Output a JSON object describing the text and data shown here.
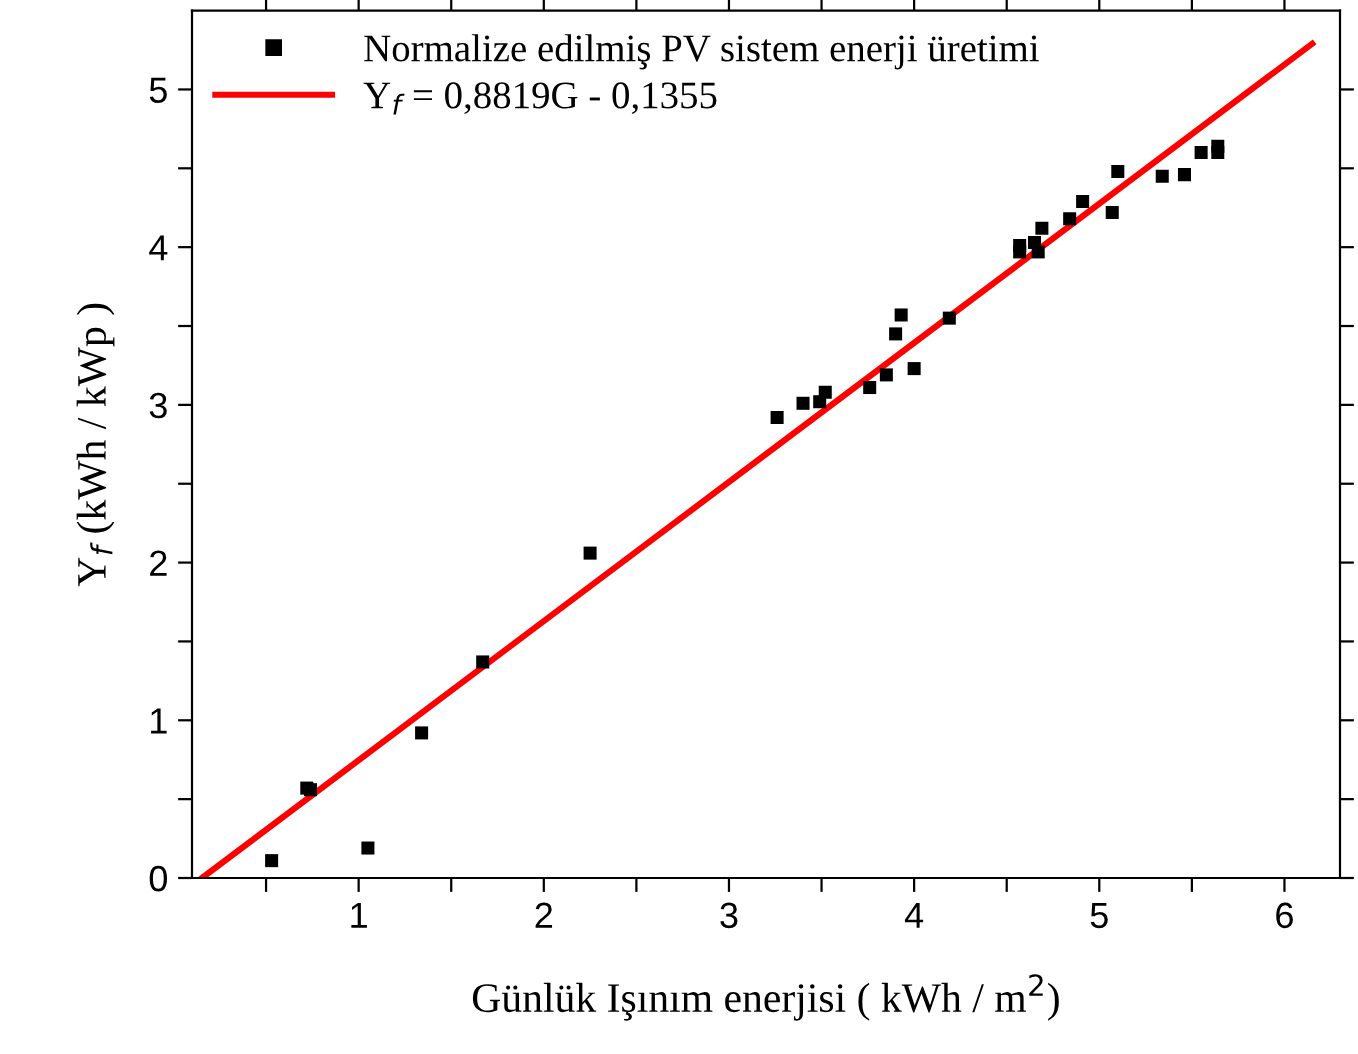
{
  "chart_data": {
    "type": "scatter",
    "xlabel": "Günlük Işınım enerjisi ( kWh / m$^{2}$)",
    "ylabel": "Y$_{f}$ (kWh / kWp )",
    "xlim": [
      0.1,
      6.3
    ],
    "ylim": [
      0,
      5.5
    ],
    "xticks": [
      {
        "value": 0.5,
        "label": null
      },
      1,
      {
        "value": 1.5,
        "label": null
      },
      2,
      {
        "value": 2.5,
        "label": null
      },
      3,
      {
        "value": 3.5,
        "label": null
      },
      4,
      {
        "value": 4.5,
        "label": null
      },
      5,
      {
        "value": 5.5,
        "label": null
      },
      6
    ],
    "yticks": [
      0,
      {
        "value": 0.5,
        "label": null
      },
      1,
      {
        "value": 1.5,
        "label": null
      },
      2,
      {
        "value": 2.5,
        "label": null
      },
      3,
      {
        "value": 3.5,
        "label": null
      },
      4,
      {
        "value": 4.5,
        "label": null
      },
      5
    ],
    "grid": false,
    "legend": "top left",
    "series": [
      {
        "name": "Normalize edilmiş PV sistem enerji üretimi",
        "marker": "square",
        "color": "#000000",
        "x": [
          0.53,
          0.72,
          0.74,
          1.05,
          1.34,
          1.67,
          2.25,
          3.26,
          3.4,
          3.49,
          3.52,
          3.76,
          3.85,
          3.9,
          3.93,
          4.0,
          4.19,
          4.57,
          4.57,
          4.65,
          4.67,
          4.69,
          4.84,
          4.91,
          5.07,
          5.1,
          5.34,
          5.46,
          5.55,
          5.64,
          5.64
        ],
        "values": [
          0.11,
          0.57,
          0.56,
          0.19,
          0.92,
          1.37,
          2.06,
          2.92,
          3.01,
          3.02,
          3.08,
          3.11,
          3.19,
          3.45,
          3.57,
          3.23,
          3.55,
          4.01,
          3.97,
          4.03,
          3.97,
          4.12,
          4.18,
          4.29,
          4.22,
          4.48,
          4.45,
          4.46,
          4.6,
          4.6,
          4.64
        ]
      },
      {
        "name": "Y$_{f}$ = 0,8819G - 0,1355",
        "type": "line",
        "marker": "none",
        "line_style": "solid",
        "color": "#ff0000",
        "x": [
          0.1537,
          6.15
        ],
        "values": [
          0,
          5.29
        ]
      }
    ]
  }
}
